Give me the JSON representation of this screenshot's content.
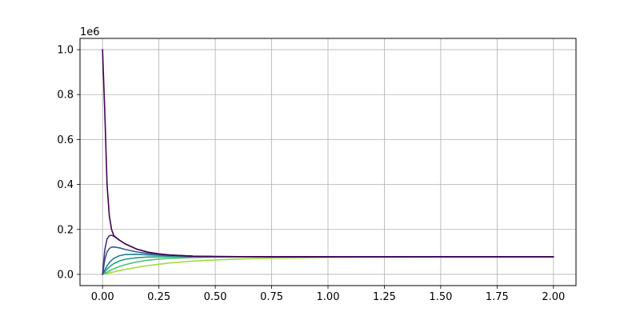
{
  "chart_data": {
    "type": "line",
    "offset_text": "1e6",
    "xlim": [
      -0.1,
      2.1
    ],
    "ylim": [
      -0.05,
      1.05
    ],
    "x_ticks": [
      0.0,
      0.25,
      0.5,
      0.75,
      1.0,
      1.25,
      1.5,
      1.75,
      2.0
    ],
    "x_tick_labels": [
      "0.00",
      "0.25",
      "0.50",
      "0.75",
      "1.00",
      "1.25",
      "1.50",
      "1.75",
      "2.00"
    ],
    "y_ticks": [
      0.0,
      0.2,
      0.4,
      0.6,
      0.8,
      1.0
    ],
    "y_tick_labels": [
      "0.0",
      "0.2",
      "0.4",
      "0.6",
      "0.8",
      "1.0"
    ],
    "grid": true,
    "legend": "none",
    "colors": {
      "grid": "#b0b0b0",
      "axes": "#000000",
      "series": [
        "#440154",
        "#46327e",
        "#365c8d",
        "#277f8e",
        "#1fa187",
        "#4ac16d",
        "#a0da39"
      ]
    },
    "series": [
      {
        "x": [
          0.0,
          0.01,
          0.02,
          0.03,
          0.04,
          0.05,
          0.075,
          0.1,
          0.15,
          0.2,
          0.25,
          0.3,
          0.4,
          0.5,
          0.6,
          0.75,
          1.0,
          1.25,
          1.5,
          1.75,
          2.0
        ],
        "values": [
          1.0,
          0.72,
          0.4,
          0.26,
          0.2,
          0.172,
          0.152,
          0.136,
          0.113,
          0.099,
          0.091,
          0.086,
          0.081,
          0.0795,
          0.079,
          0.0785,
          0.078,
          0.078,
          0.078,
          0.078,
          0.078
        ]
      },
      {
        "x": [
          0.0,
          0.01,
          0.02,
          0.03,
          0.04,
          0.05,
          0.075,
          0.1,
          0.15,
          0.2,
          0.25,
          0.3,
          0.4,
          0.5,
          0.6,
          0.75,
          1.0,
          1.25,
          1.5,
          1.75,
          2.0
        ],
        "values": [
          0.0,
          0.11,
          0.158,
          0.172,
          0.174,
          0.17,
          0.152,
          0.136,
          0.113,
          0.099,
          0.091,
          0.086,
          0.081,
          0.0795,
          0.079,
          0.0785,
          0.078,
          0.078,
          0.078,
          0.078,
          0.078
        ]
      },
      {
        "x": [
          0.0,
          0.01,
          0.02,
          0.03,
          0.04,
          0.05,
          0.075,
          0.1,
          0.15,
          0.2,
          0.25,
          0.3,
          0.4,
          0.5,
          0.6,
          0.75,
          1.0,
          1.25,
          1.5,
          1.75,
          2.0
        ],
        "values": [
          0.0,
          0.065,
          0.1,
          0.115,
          0.121,
          0.122,
          0.118,
          0.111,
          0.1,
          0.093,
          0.088,
          0.085,
          0.081,
          0.0795,
          0.079,
          0.0785,
          0.078,
          0.078,
          0.078,
          0.078,
          0.078
        ]
      },
      {
        "x": [
          0.0,
          0.01,
          0.02,
          0.03,
          0.04,
          0.05,
          0.075,
          0.1,
          0.15,
          0.2,
          0.25,
          0.3,
          0.4,
          0.5,
          0.6,
          0.75,
          1.0,
          1.25,
          1.5,
          1.75,
          2.0
        ],
        "values": [
          0.0,
          0.02,
          0.038,
          0.052,
          0.063,
          0.071,
          0.083,
          0.088,
          0.089,
          0.087,
          0.085,
          0.083,
          0.08,
          0.079,
          0.0787,
          0.0782,
          0.078,
          0.078,
          0.078,
          0.078,
          0.078
        ]
      },
      {
        "x": [
          0.0,
          0.01,
          0.02,
          0.03,
          0.04,
          0.05,
          0.075,
          0.1,
          0.15,
          0.2,
          0.25,
          0.3,
          0.4,
          0.5,
          0.6,
          0.75,
          1.0,
          1.25,
          1.5,
          1.75,
          2.0
        ],
        "values": [
          0.0,
          0.012,
          0.023,
          0.033,
          0.041,
          0.048,
          0.06,
          0.067,
          0.074,
          0.077,
          0.078,
          0.0785,
          0.0785,
          0.0783,
          0.0781,
          0.078,
          0.078,
          0.078,
          0.078,
          0.078,
          0.078
        ]
      },
      {
        "x": [
          0.0,
          0.01,
          0.02,
          0.03,
          0.04,
          0.05,
          0.075,
          0.1,
          0.15,
          0.2,
          0.25,
          0.3,
          0.4,
          0.5,
          0.6,
          0.75,
          1.0,
          1.25,
          1.5,
          1.75,
          2.0
        ],
        "values": [
          0.0,
          0.005,
          0.01,
          0.015,
          0.02,
          0.025,
          0.035,
          0.043,
          0.055,
          0.063,
          0.068,
          0.071,
          0.075,
          0.0765,
          0.0772,
          0.0777,
          0.078,
          0.078,
          0.078,
          0.078,
          0.078
        ]
      },
      {
        "x": [
          0.0,
          0.01,
          0.02,
          0.03,
          0.04,
          0.05,
          0.075,
          0.1,
          0.15,
          0.2,
          0.25,
          0.3,
          0.4,
          0.5,
          0.6,
          0.75,
          1.0,
          1.25,
          1.5,
          1.75,
          2.0
        ],
        "values": [
          0.0,
          0.002,
          0.004,
          0.007,
          0.009,
          0.011,
          0.017,
          0.022,
          0.031,
          0.039,
          0.045,
          0.051,
          0.059,
          0.064,
          0.068,
          0.072,
          0.0755,
          0.0768,
          0.0774,
          0.0777,
          0.0778
        ]
      }
    ]
  }
}
